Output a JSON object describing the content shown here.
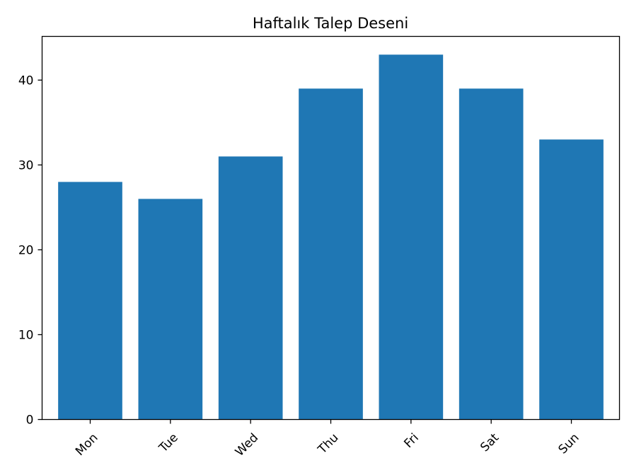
{
  "chart_data": {
    "type": "bar",
    "title": "Haftalık Talep Deseni",
    "xlabel": "",
    "ylabel": "",
    "categories": [
      "Mon",
      "Tue",
      "Wed",
      "Thu",
      "Fri",
      "Sat",
      "Sun"
    ],
    "values": [
      28,
      26,
      31,
      39,
      43,
      39,
      33
    ],
    "ylim": [
      0,
      45.15
    ],
    "yticks": [
      0,
      10,
      20,
      30,
      40
    ],
    "grid": false,
    "bar_color": "#1f77b4"
  }
}
